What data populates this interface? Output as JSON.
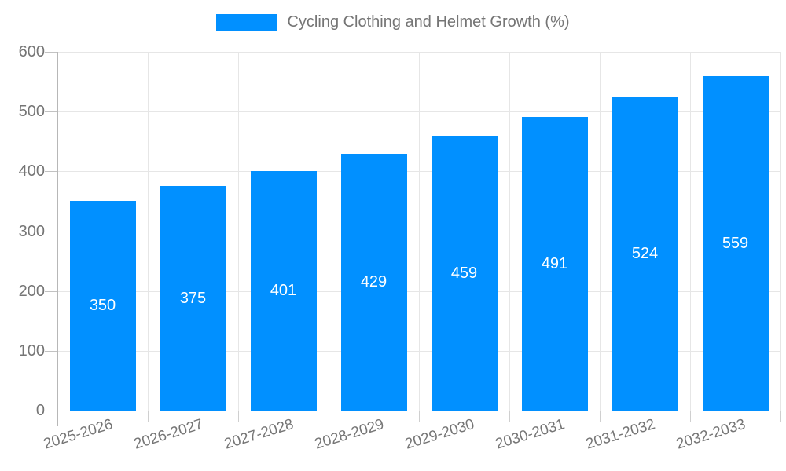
{
  "legend": {
    "label": "Cycling Clothing and Helmet Growth (%)"
  },
  "chart_data": {
    "type": "bar",
    "title": "Cycling Clothing and Helmet Growth (%)",
    "categories": [
      "2025-2026",
      "2026-2027",
      "2027-2028",
      "2028-2029",
      "2029-2030",
      "2030-2031",
      "2031-2032",
      "2032-2033"
    ],
    "values": [
      350,
      375,
      401,
      429,
      459,
      491,
      524,
      559
    ],
    "xlabel": "",
    "ylabel": "",
    "ylim": [
      0,
      600
    ],
    "yticks": [
      0,
      100,
      200,
      300,
      400,
      500,
      600
    ],
    "grid": true,
    "legend_position": "top",
    "colors": {
      "bar": "#0190ff",
      "bar_label": "#ffffff",
      "axis_text": "#757575",
      "gridline": "#e6e6e6",
      "axis_line": "#b7b7b7",
      "tick": "#c2c2c2"
    }
  }
}
